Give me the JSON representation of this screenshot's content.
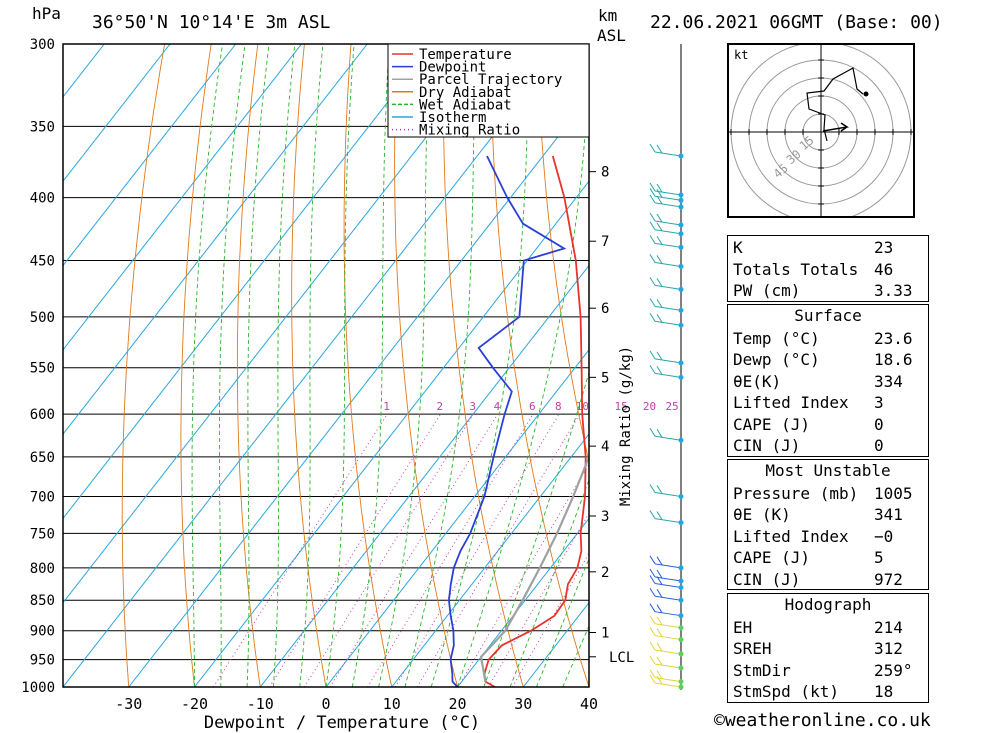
{
  "header": {
    "units_left": "hPa",
    "location": "36°50'N  10°14'E  3m  ASL",
    "units_km": "km",
    "units_asl": "ASL",
    "datetime": "22.06.2021  06GMT  (Base: 00)"
  },
  "footer": {
    "copyright": "©weatheronline.co.uk"
  },
  "legend": [
    {
      "label": "Temperature",
      "color": "#e8332a"
    },
    {
      "label": "Dewpoint",
      "color": "#2a3fd8"
    },
    {
      "label": "Parcel Trajectory",
      "color": "#a0a0a0"
    },
    {
      "label": "Dry Adiabat",
      "color": "#e07a1a"
    },
    {
      "label": "Wet Adiabat",
      "color": "#2bb42b"
    },
    {
      "label": "Isotherm",
      "color": "#2aa6e0"
    },
    {
      "label": "Mixing Ratio",
      "color": "#c23cae"
    }
  ],
  "chart_data": {
    "type": "line",
    "subtype": "skew-T log-P",
    "xlabel": "Dewpoint / Temperature (°C)",
    "ylabel": "hPa",
    "xlim": [
      -40,
      40
    ],
    "ylim": [
      1000,
      300
    ],
    "y_scale": "log",
    "x_ticks": [
      -30,
      -20,
      -10,
      0,
      10,
      20,
      30,
      40
    ],
    "y_ticks": [
      300,
      350,
      400,
      450,
      500,
      550,
      600,
      650,
      700,
      750,
      800,
      850,
      900,
      950,
      1000
    ],
    "km_axis": {
      "label": "km ASL",
      "ticks": [
        {
          "label": "8",
          "p": 381
        },
        {
          "label": "7",
          "p": 434
        },
        {
          "label": "6",
          "p": 492
        },
        {
          "label": "5",
          "p": 560
        },
        {
          "label": "4",
          "p": 637
        },
        {
          "label": "3",
          "p": 726
        },
        {
          "label": "2",
          "p": 806
        },
        {
          "label": "1",
          "p": 903
        },
        {
          "label": "LCL",
          "p": 945
        }
      ]
    },
    "mixing_ratio_axis": {
      "label": "Mixing Ratio (g/kg)",
      "values": [
        "1",
        "2",
        "3",
        "4",
        "6",
        "8",
        "10",
        "15",
        "20",
        "25"
      ]
    },
    "series": [
      {
        "name": "Temperature",
        "p": [
          1000,
          990,
          975,
          950,
          925,
          900,
          875,
          850,
          825,
          800,
          775,
          750,
          700,
          650,
          600,
          550,
          500,
          450,
          400,
          370
        ],
        "t": [
          25.7,
          23.6,
          22.5,
          21.5,
          21.8,
          24.5,
          26.3,
          26.1,
          24.6,
          24.1,
          22.7,
          20.5,
          16.8,
          12.2,
          6.6,
          1.0,
          -5.2,
          -12.6,
          -21.8,
          -28.5
        ]
      },
      {
        "name": "Dewpoint",
        "p": [
          1000,
          990,
          975,
          950,
          925,
          900,
          875,
          850,
          825,
          800,
          775,
          750,
          700,
          650,
          600,
          575,
          550,
          530,
          500,
          450,
          440,
          420,
          400,
          370
        ],
        "t": [
          20.0,
          18.6,
          17.6,
          15.7,
          14.5,
          12.7,
          10.5,
          8.4,
          6.8,
          5.3,
          4.3,
          3.7,
          1.5,
          -1.8,
          -5.2,
          -6.8,
          -12.5,
          -17.0,
          -14.5,
          -20.5,
          -15.8,
          -25.0,
          -30.5,
          -38.5
        ]
      },
      {
        "name": "Parcel Trajectory",
        "p": [
          990,
          945,
          900,
          850,
          800,
          750,
          700,
          650,
          600,
          550,
          500,
          450,
          400,
          350,
          320
        ],
        "t": [
          23.6,
          20.0,
          20.6,
          19.6,
          18.4,
          16.9,
          15.0,
          12.7,
          9.6,
          6.0,
          1.5,
          -4.5,
          -12.3,
          -22.6,
          -30.0
        ]
      }
    ],
    "wind_barbs": [
      {
        "p": 370
      },
      {
        "p": 398
      },
      {
        "p": 402
      },
      {
        "p": 407
      },
      {
        "p": 421
      },
      {
        "p": 428
      },
      {
        "p": 439
      },
      {
        "p": 455
      },
      {
        "p": 475
      },
      {
        "p": 494
      },
      {
        "p": 508
      },
      {
        "p": 545
      },
      {
        "p": 560
      },
      {
        "p": 630
      },
      {
        "p": 700
      },
      {
        "p": 735
      },
      {
        "p": 800
      },
      {
        "p": 820
      },
      {
        "p": 830
      },
      {
        "p": 850
      },
      {
        "p": 875
      },
      {
        "p": 895
      },
      {
        "p": 915
      },
      {
        "p": 940
      },
      {
        "p": 965
      },
      {
        "p": 990
      },
      {
        "p": 1000
      }
    ]
  },
  "hodograph": {
    "unit_label": "kt",
    "ring_labels": [
      "15",
      "30",
      "45"
    ]
  },
  "indices": [
    {
      "key": "K",
      "value": "23"
    },
    {
      "key": "Totals Totals",
      "value": "46"
    },
    {
      "key": "PW (cm)",
      "value": "3.33"
    }
  ],
  "surface": {
    "title": "Surface",
    "rows": [
      {
        "key": "Temp (°C)",
        "value": "23.6"
      },
      {
        "key": "Dewp (°C)",
        "value": "18.6"
      },
      {
        "key": "θE(K)",
        "value": "334"
      },
      {
        "key": "Lifted Index",
        "value": "3"
      },
      {
        "key": "CAPE (J)",
        "value": "0"
      },
      {
        "key": "CIN (J)",
        "value": "0"
      }
    ]
  },
  "most_unstable": {
    "title": "Most Unstable",
    "rows": [
      {
        "key": "Pressure (mb)",
        "value": "1005"
      },
      {
        "key": "θE (K)",
        "value": "341"
      },
      {
        "key": "Lifted Index",
        "value": "−0"
      },
      {
        "key": "CAPE (J)",
        "value": "5"
      },
      {
        "key": "CIN (J)",
        "value": "972"
      }
    ]
  },
  "hodograph_params": {
    "title": "Hodograph",
    "rows": [
      {
        "key": "EH",
        "value": "214"
      },
      {
        "key": "SREH",
        "value": "312"
      },
      {
        "key": "StmDir",
        "value": "259°"
      },
      {
        "key": "StmSpd (kt)",
        "value": "18"
      }
    ]
  }
}
